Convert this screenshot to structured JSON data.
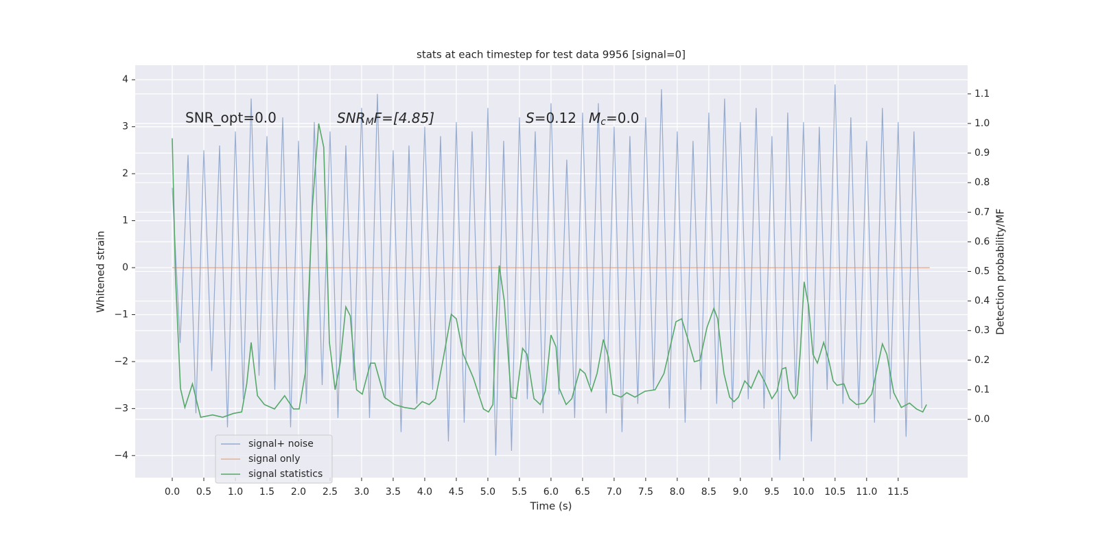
{
  "chart_data": {
    "type": "line",
    "title": "stats at each timestep for test data 9956 [signal=0]",
    "xlabel": "Time (s)",
    "ylabel": "Whitened strain",
    "y2label": "Detection probability/MF",
    "annotations": [
      [
        "SNR_opt=0.0"
      ],
      [
        "SNR",
        "M",
        "F=[4.85]"
      ],
      [
        "S",
        "=0.12"
      ],
      [
        "M",
        "c",
        "=0.0"
      ]
    ],
    "xlim": [
      -0.587,
      12.6
    ],
    "ylim": [
      -4.47,
      4.31
    ],
    "y2lim": [
      -0.197,
      1.197
    ],
    "xticks": [
      {
        "value": 0,
        "label": "0.0"
      },
      0.5,
      {
        "value": 1,
        "label": "1.0"
      },
      1.5,
      {
        "value": 2,
        "label": "2.0"
      },
      2.5,
      {
        "value": 3,
        "label": "3.0"
      },
      3.5,
      {
        "value": 4,
        "label": "4.0"
      },
      4.5,
      {
        "value": 5,
        "label": "5.0"
      },
      5.5,
      {
        "value": 6,
        "label": "6.0"
      },
      6.5,
      {
        "value": 7,
        "label": "7.0"
      },
      7.5,
      {
        "value": 8,
        "label": "8.0"
      },
      8.5,
      {
        "value": 9,
        "label": "9.0"
      },
      9.5,
      {
        "value": 10,
        "label": "10.0"
      },
      10.5,
      {
        "value": 11,
        "label": "11.0"
      },
      11.5
    ],
    "yticks": [
      {
        "value": -4,
        "label": "−4"
      },
      {
        "value": -3,
        "label": "−3"
      },
      {
        "value": -2,
        "label": "−2"
      },
      {
        "value": -1,
        "label": "−1"
      },
      0,
      1,
      2,
      3,
      4
    ],
    "y2ticks": [
      {
        "value": 0,
        "label": "0.0"
      },
      0.1,
      0.2,
      0.3,
      0.4,
      0.5,
      0.6,
      0.7,
      0.8,
      0.9,
      {
        "value": 1,
        "label": "1.0"
      },
      1.1
    ],
    "grid": true,
    "legend": "lower left",
    "series": [
      {
        "name": "signal+ noise",
        "color": "#4c72b0",
        "axis": "y",
        "x": [
          0,
          0.125,
          0.25,
          0.375,
          0.5,
          0.625,
          0.75,
          0.875,
          1,
          1.125,
          1.25,
          1.375,
          1.5,
          1.625,
          1.75,
          1.875,
          2,
          2.125,
          2.25,
          2.375,
          2.5,
          2.625,
          2.75,
          2.875,
          3,
          3.125,
          3.25,
          3.375,
          3.5,
          3.625,
          3.75,
          3.875,
          4,
          4.125,
          4.25,
          4.375,
          4.5,
          4.625,
          4.75,
          4.875,
          5,
          5.125,
          5.25,
          5.375,
          5.5,
          5.625,
          5.75,
          5.875,
          6,
          6.125,
          6.25,
          6.375,
          6.5,
          6.625,
          6.75,
          6.875,
          7,
          7.125,
          7.25,
          7.375,
          7.5,
          7.625,
          7.75,
          7.875,
          8,
          8.125,
          8.25,
          8.375,
          8.5,
          8.625,
          8.75,
          8.875,
          9,
          9.125,
          9.25,
          9.375,
          9.5,
          9.625,
          9.75,
          9.875,
          10,
          10.125,
          10.25,
          10.375,
          10.5,
          10.625,
          10.75,
          10.875,
          11,
          11.125,
          11.25,
          11.375,
          11.5,
          11.625,
          11.75,
          11.875
        ],
        "values": [
          1.7,
          -1.6,
          2.4,
          -3.1,
          2.5,
          -2.2,
          2.6,
          -3.4,
          2.9,
          -2.8,
          3.6,
          -2.3,
          2.8,
          -2.6,
          3.2,
          -3.4,
          2.7,
          -2.9,
          3.1,
          -2.5,
          2.9,
          -3.2,
          2.6,
          -2.4,
          3.4,
          -3.2,
          3.7,
          -2.8,
          2.5,
          -3.5,
          2.6,
          -2.9,
          3.0,
          -2.6,
          2.8,
          -3.7,
          3.1,
          -3.3,
          2.9,
          -2.7,
          3.4,
          -4.0,
          2.7,
          -3.9,
          3.2,
          -2.8,
          2.9,
          -3.1,
          3.5,
          -2.7,
          2.3,
          -3.2,
          3.3,
          -2.5,
          3.5,
          -3.1,
          3.0,
          -3.5,
          2.8,
          -2.9,
          3.2,
          -2.6,
          3.8,
          -3.0,
          2.9,
          -3.3,
          2.7,
          -2.6,
          3.3,
          -2.9,
          3.6,
          -3.0,
          3.1,
          -2.8,
          3.4,
          -3.0,
          2.8,
          -4.1,
          3.3,
          -2.7,
          3.1,
          -3.7,
          3.0,
          -2.6,
          3.9,
          -2.9,
          3.2,
          -3.0,
          2.7,
          -3.3,
          3.4,
          -2.8,
          3.1,
          -3.6,
          2.9,
          -3.0
        ]
      },
      {
        "name": "signal only",
        "color": "#dd8452",
        "axis": "y",
        "x": [
          0,
          12.0
        ],
        "values": [
          0,
          0
        ]
      },
      {
        "name": "signal statistics",
        "color": "#55a868",
        "axis": "y2",
        "x": [
          0,
          0.05,
          0.13,
          0.2,
          0.32,
          0.45,
          0.64,
          0.8,
          0.97,
          1.1,
          1.18,
          1.25,
          1.35,
          1.46,
          1.62,
          1.78,
          1.92,
          2.01,
          2.11,
          2.22,
          2.32,
          2.4,
          2.49,
          2.58,
          2.66,
          2.75,
          2.82,
          2.92,
          3.01,
          3.14,
          3.21,
          3.36,
          3.52,
          3.68,
          3.84,
          3.96,
          4.07,
          4.17,
          4.28,
          4.42,
          4.5,
          4.61,
          4.77,
          4.93,
          5.01,
          5.08,
          5.12,
          5.18,
          5.26,
          5.37,
          5.45,
          5.55,
          5.62,
          5.73,
          5.83,
          5.91,
          6.0,
          6.08,
          6.13,
          6.24,
          6.33,
          6.46,
          6.54,
          6.64,
          6.73,
          6.83,
          6.91,
          6.98,
          7.11,
          7.2,
          7.33,
          7.49,
          7.65,
          7.79,
          7.98,
          8.07,
          8.17,
          8.27,
          8.36,
          8.47,
          8.58,
          8.64,
          8.74,
          8.83,
          8.9,
          8.97,
          9.07,
          9.17,
          9.29,
          9.39,
          9.5,
          9.58,
          9.66,
          9.72,
          9.77,
          9.85,
          9.9,
          9.95,
          10.01,
          10.08,
          10.15,
          10.22,
          10.32,
          10.4,
          10.47,
          10.53,
          10.64,
          10.73,
          10.84,
          10.97,
          11.08,
          11.16,
          11.25,
          11.32,
          11.43,
          11.55,
          11.68,
          11.79,
          11.89,
          11.95
        ],
        "values": [
          0.95,
          0.49,
          0.105,
          0.04,
          0.12,
          0.007,
          0.015,
          0.007,
          0.02,
          0.025,
          0.12,
          0.26,
          0.08,
          0.05,
          0.035,
          0.08,
          0.035,
          0.035,
          0.16,
          0.72,
          1.0,
          0.92,
          0.26,
          0.1,
          0.19,
          0.38,
          0.35,
          0.1,
          0.085,
          0.19,
          0.19,
          0.075,
          0.05,
          0.04,
          0.035,
          0.06,
          0.05,
          0.07,
          0.19,
          0.355,
          0.34,
          0.22,
          0.14,
          0.035,
          0.025,
          0.05,
          0.28,
          0.52,
          0.4,
          0.075,
          0.07,
          0.24,
          0.22,
          0.07,
          0.05,
          0.095,
          0.285,
          0.245,
          0.105,
          0.05,
          0.07,
          0.17,
          0.155,
          0.095,
          0.155,
          0.27,
          0.21,
          0.085,
          0.075,
          0.09,
          0.075,
          0.095,
          0.1,
          0.155,
          0.33,
          0.34,
          0.27,
          0.195,
          0.2,
          0.31,
          0.375,
          0.34,
          0.155,
          0.075,
          0.06,
          0.075,
          0.13,
          0.105,
          0.165,
          0.125,
          0.07,
          0.095,
          0.17,
          0.175,
          0.1,
          0.07,
          0.085,
          0.23,
          0.465,
          0.385,
          0.22,
          0.19,
          0.26,
          0.2,
          0.13,
          0.115,
          0.12,
          0.07,
          0.05,
          0.055,
          0.085,
          0.165,
          0.255,
          0.22,
          0.09,
          0.04,
          0.055,
          0.035,
          0.025,
          0.05
        ]
      }
    ]
  }
}
